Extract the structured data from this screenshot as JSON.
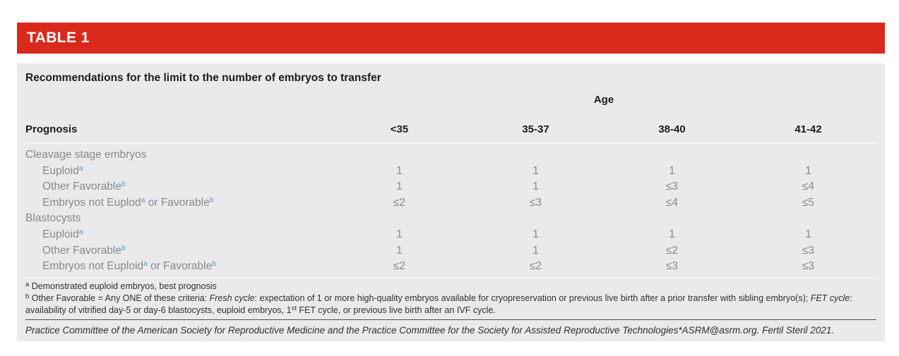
{
  "colors": {
    "banner_red": "#da291c",
    "panel_gray": "#eaeaeb",
    "header_text": "#1c1c1c",
    "row_text": "#87898c",
    "superscript_blue": "#4ba0d4",
    "footnote_text": "#2f2f30"
  },
  "banner": {
    "label": "TABLE 1"
  },
  "table": {
    "title": "Recommendations for the limit to the number of embryos to transfer",
    "age_header": "Age",
    "prognosis_header": "Prognosis",
    "age_columns": [
      "<35",
      "35-37",
      "38-40",
      "41-42"
    ],
    "rows": [
      {
        "type": "section",
        "label": "Cleavage stage embryos"
      },
      {
        "type": "data",
        "indent": true,
        "label_parts": [
          {
            "text": "Euploid"
          },
          {
            "sup": "a"
          }
        ],
        "values": [
          "1",
          "1",
          "1",
          "1"
        ]
      },
      {
        "type": "data",
        "indent": true,
        "label_parts": [
          {
            "text": "Other Favorable"
          },
          {
            "sup": "b"
          }
        ],
        "values": [
          "1",
          "1",
          "≤3",
          "≤4"
        ]
      },
      {
        "type": "data",
        "indent": true,
        "label_parts": [
          {
            "text": "Embryos not Euplod"
          },
          {
            "sup": "a"
          },
          {
            "text": " or Favorable"
          },
          {
            "sup": "b"
          }
        ],
        "values": [
          "≤2",
          "≤3",
          "≤4",
          "≤5"
        ]
      },
      {
        "type": "section",
        "label": "Blastocysts"
      },
      {
        "type": "data",
        "indent": true,
        "label_parts": [
          {
            "text": "Euploid"
          },
          {
            "sup": "a"
          }
        ],
        "values": [
          "1",
          "1",
          "1",
          "1"
        ]
      },
      {
        "type": "data",
        "indent": true,
        "label_parts": [
          {
            "text": "Other Favorable"
          },
          {
            "sup": "b"
          }
        ],
        "values": [
          "1",
          "1",
          "≤2",
          "≤3"
        ]
      },
      {
        "type": "data",
        "indent": true,
        "label_parts": [
          {
            "text": "Embryos not Euploid"
          },
          {
            "sup": "a"
          },
          {
            "text": " or Favorable"
          },
          {
            "sup": "b"
          }
        ],
        "values": [
          "≤2",
          "≤2",
          "≤3",
          "≤3"
        ]
      }
    ]
  },
  "footnotes": [
    {
      "marker": "a",
      "segments": [
        {
          "text": "Demonstrated euploid embryos, best prognosis"
        }
      ]
    },
    {
      "marker": "b",
      "segments": [
        {
          "text": "Other Favorable = Any ONE of these criteria: "
        },
        {
          "italic": "Fresh cycle"
        },
        {
          "text": ": expectation of 1 or more high-quality embryos available for cryopreservation or previous live birth after a prior transfer with sibling embryo(s); "
        },
        {
          "italic": "FET cycle"
        },
        {
          "text": ": availability of vitrified day-5 or day-6 blastocysts, euploid embryos, 1"
        },
        {
          "sup": "st"
        },
        {
          "text": " FET cycle, or previous live birth after an IVF cycle."
        }
      ]
    }
  ],
  "citation": "Practice Committee of the American Society for Reproductive Medicine and the Practice Committee for the Society for Assisted Reproductive Technologies*ASRM@asrm.org. Fertil Steril 2021."
}
